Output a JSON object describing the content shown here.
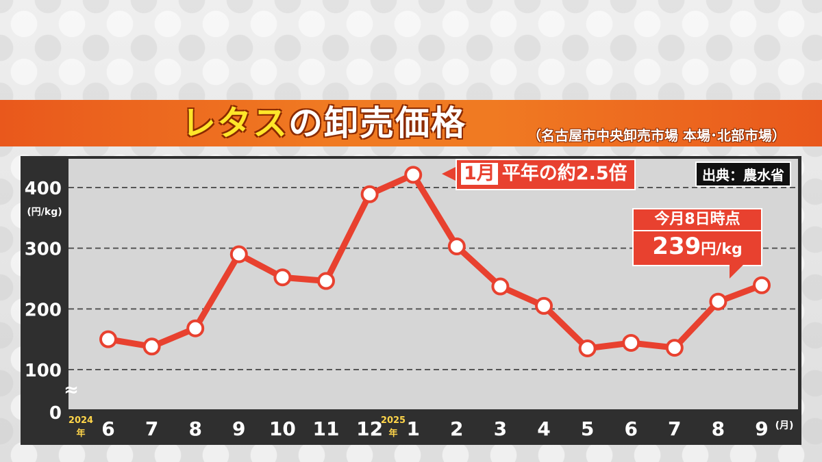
{
  "title": {
    "main_hl": "レタス",
    "main_rest": "の卸売価格",
    "sub": "（名古屋市中央卸売市場 本場･北部市場）"
  },
  "source": "出典：農水省",
  "callout_peak": {
    "box": "1月",
    "text": "平年の約2.5倍"
  },
  "callout_latest": {
    "line1": "今月8日時点",
    "value": "239",
    "unit": "円/kg"
  },
  "axis": {
    "y_unit": "(円/kg)",
    "x_unit": "(月)",
    "year_2024": "2024",
    "year_2025": "2025",
    "year_char": "年",
    "break_mark": "≈"
  },
  "chart_data": {
    "type": "line",
    "categories": [
      "6",
      "7",
      "8",
      "9",
      "10",
      "11",
      "12",
      "1",
      "2",
      "3",
      "4",
      "5",
      "6",
      "7",
      "8",
      "9"
    ],
    "values": [
      150,
      138,
      168,
      290,
      252,
      246,
      389,
      421,
      303,
      237,
      205,
      135,
      144,
      136,
      212,
      239
    ],
    "yticks": [
      0,
      100,
      200,
      300,
      400
    ],
    "ylim": [
      0,
      440
    ],
    "axis_break": true,
    "grid": true,
    "colors": {
      "line": "#e8412f",
      "marker_fill": "#ffffff",
      "grid": "#555555",
      "plot_bg": "#d6d6d6"
    }
  }
}
